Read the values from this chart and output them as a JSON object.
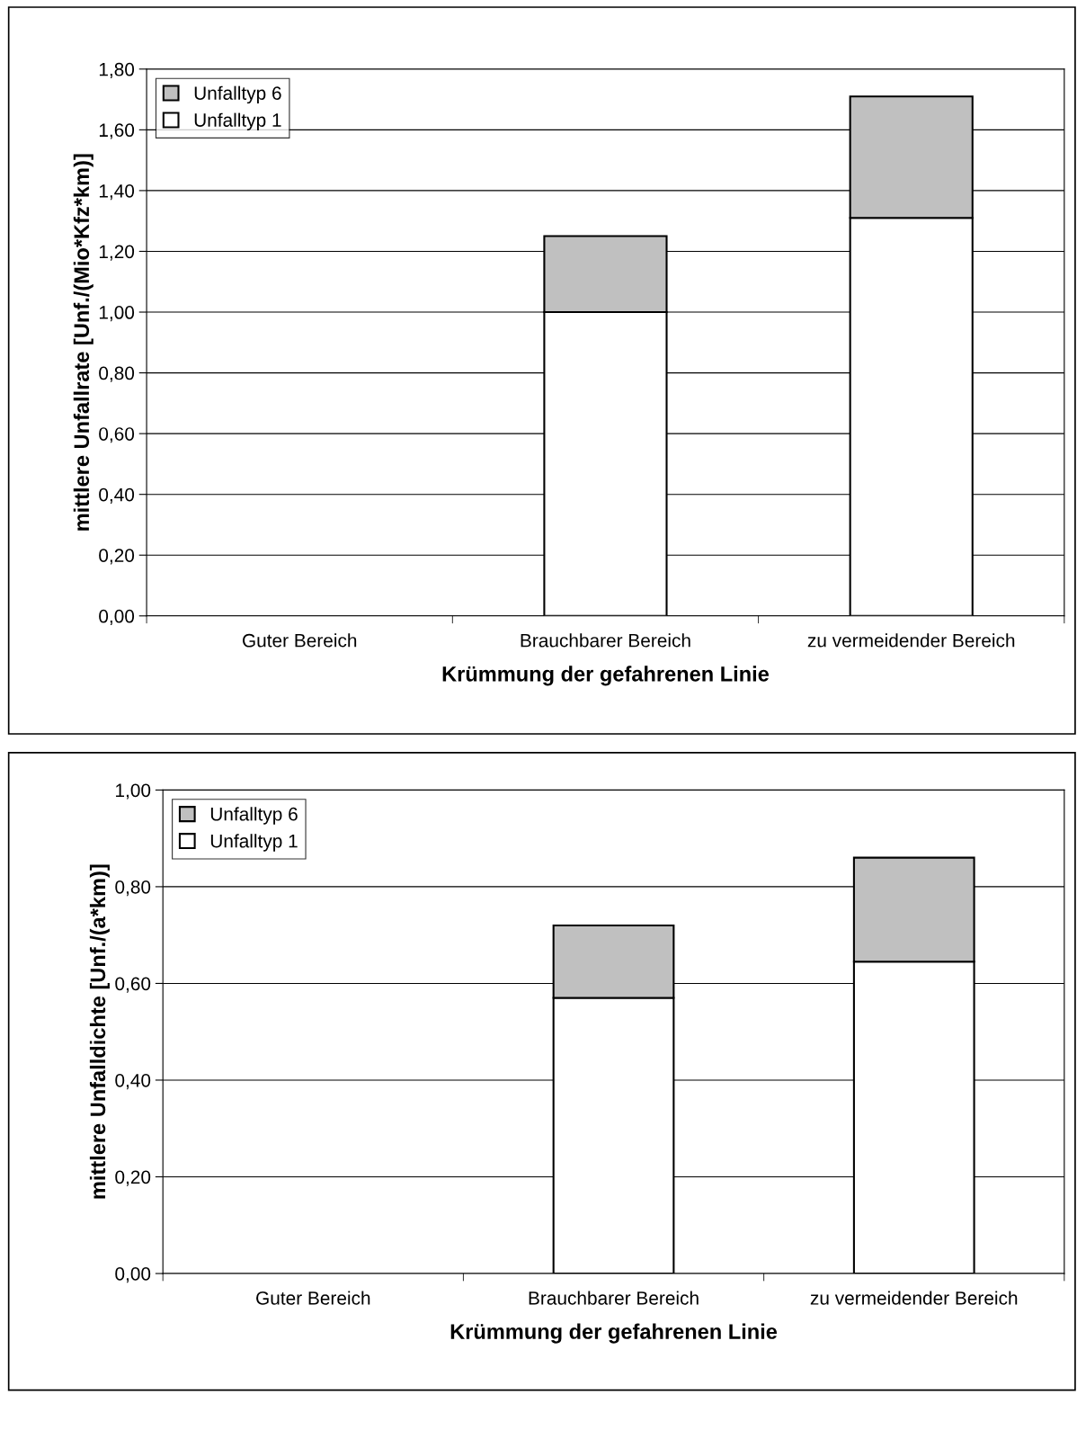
{
  "chart_data": [
    {
      "type": "bar",
      "stacked": true,
      "categories": [
        "Guter Bereich",
        "Brauchbarer Bereich",
        "zu vermeidender Bereich"
      ],
      "xlabel": "Krümmung der gefahrenen Linie",
      "ylabel": "mittlere Unfallrate [Unf./(Mio*Kfz*km)]",
      "ylim": [
        0,
        1.8
      ],
      "yticks": [
        {
          "value": 0,
          "label": "0,00"
        },
        {
          "value": 0.2,
          "label": "0,20"
        },
        {
          "value": 0.4,
          "label": "0,40"
        },
        {
          "value": 0.6,
          "label": "0,60"
        },
        {
          "value": 0.8,
          "label": "0,80"
        },
        {
          "value": 1.0,
          "label": "1,00"
        },
        {
          "value": 1.2,
          "label": "1,20"
        },
        {
          "value": 1.4,
          "label": "1,40"
        },
        {
          "value": 1.6,
          "label": "1,60"
        },
        {
          "value": 1.8,
          "label": "1,80"
        }
      ],
      "grid": "y",
      "legend": "top left",
      "series": [
        {
          "name": "Unfalltyp 1",
          "color": "#ffffff",
          "values": [
            null,
            1.0,
            1.31
          ]
        },
        {
          "name": "Unfalltyp 6",
          "color": "#c0c0c0",
          "values": [
            null,
            0.25,
            0.4
          ]
        }
      ]
    },
    {
      "type": "bar",
      "stacked": true,
      "categories": [
        "Guter Bereich",
        "Brauchbarer Bereich",
        "zu vermeidender Bereich"
      ],
      "xlabel": "Krümmung der gefahrenen Linie",
      "ylabel": "mittlere Unfalldichte [Unf./(a*km)]",
      "ylim": [
        0,
        1.0
      ],
      "yticks": [
        {
          "value": 0,
          "label": "0,00"
        },
        {
          "value": 0.2,
          "label": "0,20"
        },
        {
          "value": 0.4,
          "label": "0,40"
        },
        {
          "value": 0.6,
          "label": "0,60"
        },
        {
          "value": 0.8,
          "label": "0,80"
        },
        {
          "value": 1.0,
          "label": "1,00"
        }
      ],
      "grid": "y",
      "legend": "top left",
      "series": [
        {
          "name": "Unfalltyp 1",
          "color": "#ffffff",
          "values": [
            null,
            0.57,
            0.645
          ]
        },
        {
          "name": "Unfalltyp 6",
          "color": "#c0c0c0",
          "values": [
            null,
            0.15,
            0.215
          ]
        }
      ]
    }
  ]
}
